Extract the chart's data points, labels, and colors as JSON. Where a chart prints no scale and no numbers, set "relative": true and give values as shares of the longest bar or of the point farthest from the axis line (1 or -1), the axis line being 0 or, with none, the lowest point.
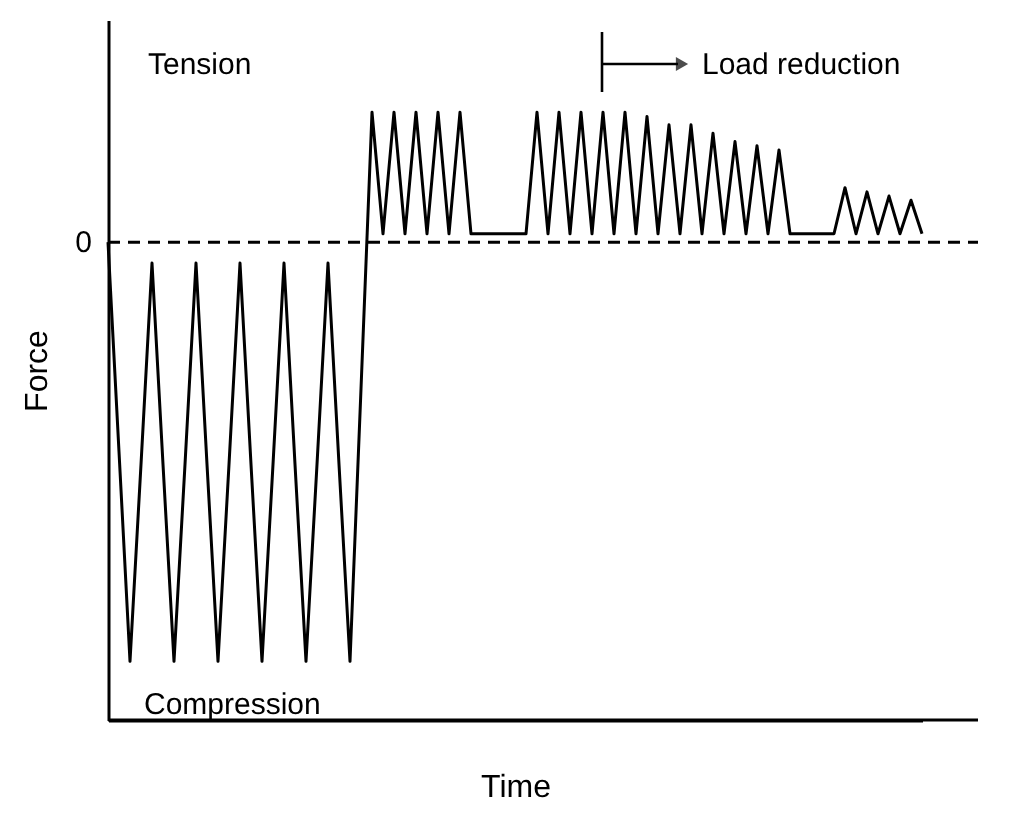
{
  "chart_data": {
    "type": "line",
    "relative": true,
    "xlabel": "Time",
    "ylabel": "Force",
    "categories": [
      null,
      null,
      null,
      null,
      null,
      null,
      null,
      null,
      null,
      null,
      null,
      null,
      null,
      null,
      null,
      null,
      null,
      null,
      null,
      null,
      null,
      null,
      null,
      null,
      null,
      null,
      null,
      null,
      null,
      null,
      null,
      null,
      null,
      null,
      null,
      null,
      null,
      null,
      null,
      null,
      null,
      null,
      null,
      null,
      null,
      null,
      null,
      null,
      null,
      null,
      null,
      null,
      null,
      null,
      null,
      null,
      null,
      null,
      null,
      null,
      null,
      null,
      null,
      null,
      null,
      null,
      null,
      null,
      null,
      null,
      null,
      null,
      null,
      null,
      null
    ],
    "series": [
      {
        "color": "#000000",
        "values": [
          0,
          -0.5,
          -1,
          -0.53,
          -0.05,
          -0.53,
          -1,
          -0.53,
          -0.05,
          -0.53,
          -1,
          -0.53,
          -0.05,
          -0.53,
          -1,
          -0.53,
          -0.05,
          -0.53,
          -1,
          -0.53,
          -0.05,
          -0.53,
          -1,
          -0.35,
          0.31,
          0.02,
          0.31,
          0.02,
          0.31,
          0.02,
          0.31,
          0.02,
          0.31,
          0.02,
          0.02,
          0.02,
          0.02,
          0.02,
          0.02,
          0.31,
          0.02,
          0.31,
          0.02,
          0.31,
          0.02,
          0.31,
          0.02,
          0.31,
          0.02,
          0.3,
          0.02,
          0.28,
          0.02,
          0.28,
          0.02,
          0.26,
          0.02,
          0.24,
          0.02,
          0.23,
          0.02,
          0.22,
          0.02,
          0.02,
          0.02,
          0.02,
          0.02,
          0.13,
          0.02,
          0.12,
          0.02,
          0.11,
          0.02,
          0.1,
          0.02
        ]
      }
    ],
    "ref_lines": [
      {
        "axis": "y",
        "value": 0,
        "label": "0",
        "line_style": "dashed",
        "color": "#000000"
      }
    ],
    "annotations": [
      "Tension",
      "Compression",
      "Load reduction"
    ],
    "line_style": "solid",
    "grid": false
  }
}
